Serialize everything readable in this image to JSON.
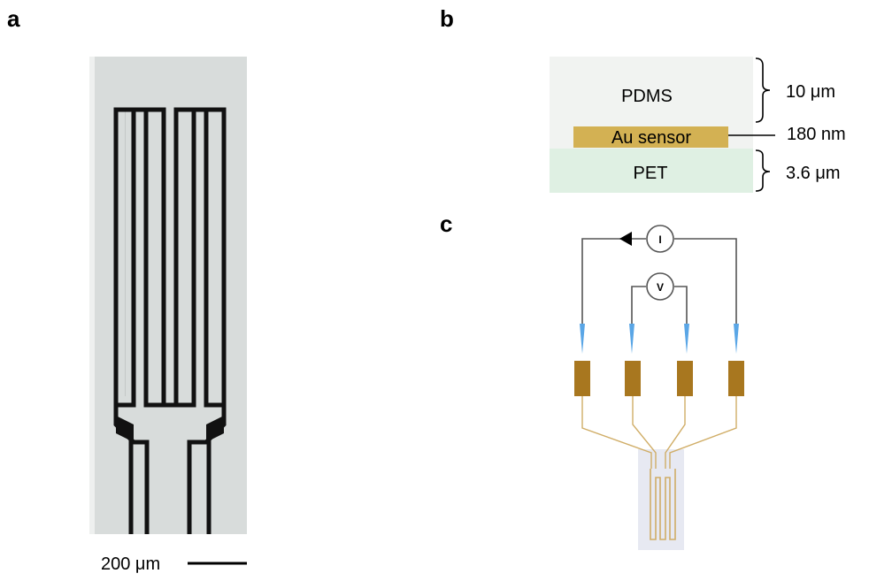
{
  "panels": {
    "a": {
      "letter": "a",
      "scale_bar_label": "200 μm"
    },
    "b": {
      "letter": "b",
      "layers": {
        "top": "PDMS",
        "middle": "Au sensor",
        "bottom": "PET"
      },
      "thickness": {
        "top": "10 μm",
        "middle": "180 nm",
        "bottom": "3.6 μm"
      },
      "colors": {
        "pdms": "#f1f3f1",
        "au": "#d3b153",
        "pet": "#dff0e3"
      }
    },
    "c": {
      "letter": "c",
      "meters": {
        "current": "I",
        "voltage": "V"
      },
      "colors": {
        "pad": "#a8771f",
        "trace": "#d0ad66",
        "probe": "#5aa6e6",
        "wire": "#555555"
      }
    }
  }
}
